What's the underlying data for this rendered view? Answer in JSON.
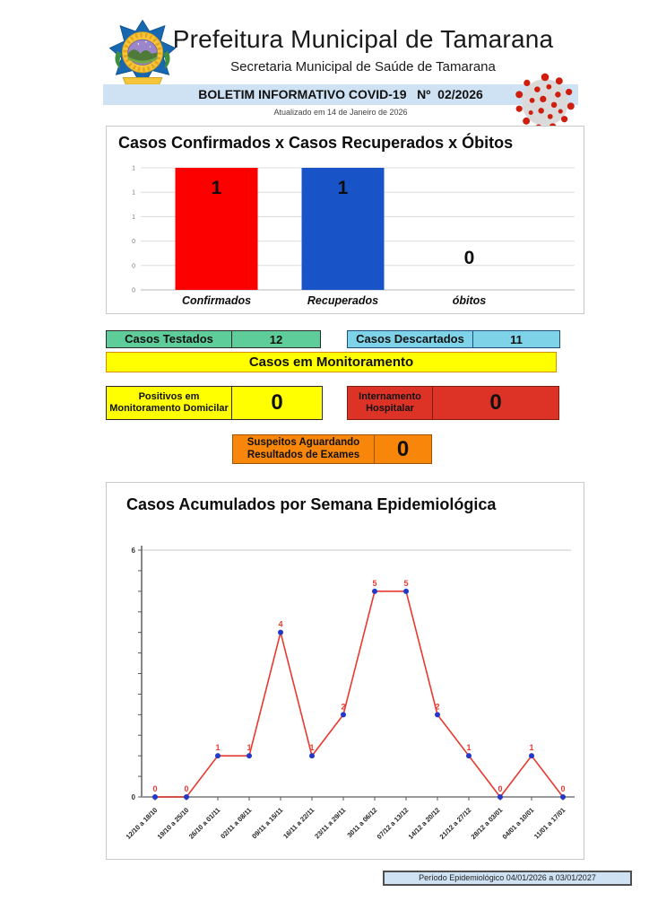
{
  "header": {
    "title": "Prefeitura Municipal de Tamarana",
    "subtitle": "Secretaria Municipal de Saúde de Tamarana",
    "banner": "BOLETIM INFORMATIVO COVID-19   Nº  02/2026",
    "updated": "Atualizado em 14 de Janeiro de 2026",
    "banner_bg": "#cfe2f3",
    "logo_icon": "tamarana-coat-of-arms",
    "virus_icon": "coronavirus"
  },
  "info_boxes": {
    "tested": {
      "label": "Casos Testados",
      "value": "12",
      "bg": "#5ecd99"
    },
    "discarded": {
      "label": "Casos Descartados",
      "value": "11",
      "bg": "#7fd3e8"
    },
    "monitoring_title": "Casos em Monitoramento",
    "monitoring_bg": "#ffff00",
    "home": {
      "line1": "Positivos em",
      "line2": "Monitoramento Domicilar",
      "value": "0",
      "bg": "#ffff00"
    },
    "hospital": {
      "line1": "Internamento",
      "line2": "Hospitalar",
      "value": "0",
      "bg": "#dd3327"
    },
    "suspects": {
      "line1": "Suspeitos Aguardando",
      "line2": "Resultados de Exames",
      "value": "0",
      "bg": "#f8860b"
    }
  },
  "chart_data": [
    {
      "type": "bar",
      "title": "Casos Confirmados x Casos Recuperados x Óbitos",
      "categories": [
        "Confirmados",
        "Recuperados",
        "óbitos"
      ],
      "values": [
        1,
        1,
        0
      ],
      "value_labels": [
        "1",
        "1",
        "0"
      ],
      "bar_colors": [
        "#fc0000",
        "#1853c8",
        "#1853c8"
      ],
      "ylim": [
        0,
        1
      ],
      "yticks_top_to_bottom": [
        "1",
        "1",
        "1",
        "0",
        "0",
        "0"
      ],
      "grid": true,
      "legend": "none"
    },
    {
      "type": "line",
      "title": "Casos Acumulados por Semana Epidemiológica",
      "categories": [
        "12/10 a 18/10",
        "19/10 a 25/10",
        "26/10 a 01/11",
        "02/11 a 08/11",
        "09/11 a 15/11",
        "16/11 a 22/11",
        "23/11 a 29/11",
        "3011 a 06/12",
        "07/12 a 13/12",
        "14/12 a 20/12",
        "21/12 a 27/12",
        "28/12 a 03/01",
        "04/01 a 10/01",
        "11/01 a 17/01"
      ],
      "values": [
        0,
        0,
        1,
        1,
        4,
        1,
        2,
        5,
        5,
        2,
        1,
        0,
        1,
        0
      ],
      "ylim": [
        0,
        6
      ],
      "ytick_labels": [
        "0",
        "6"
      ],
      "line_color": "#e8392f",
      "marker_color": "#2338c8",
      "data_label_color": "#e8392f",
      "grid": "top-only"
    }
  ],
  "footer": {
    "period": "Período Epidemiológico 04/01/2026 a 03/01/2027"
  }
}
